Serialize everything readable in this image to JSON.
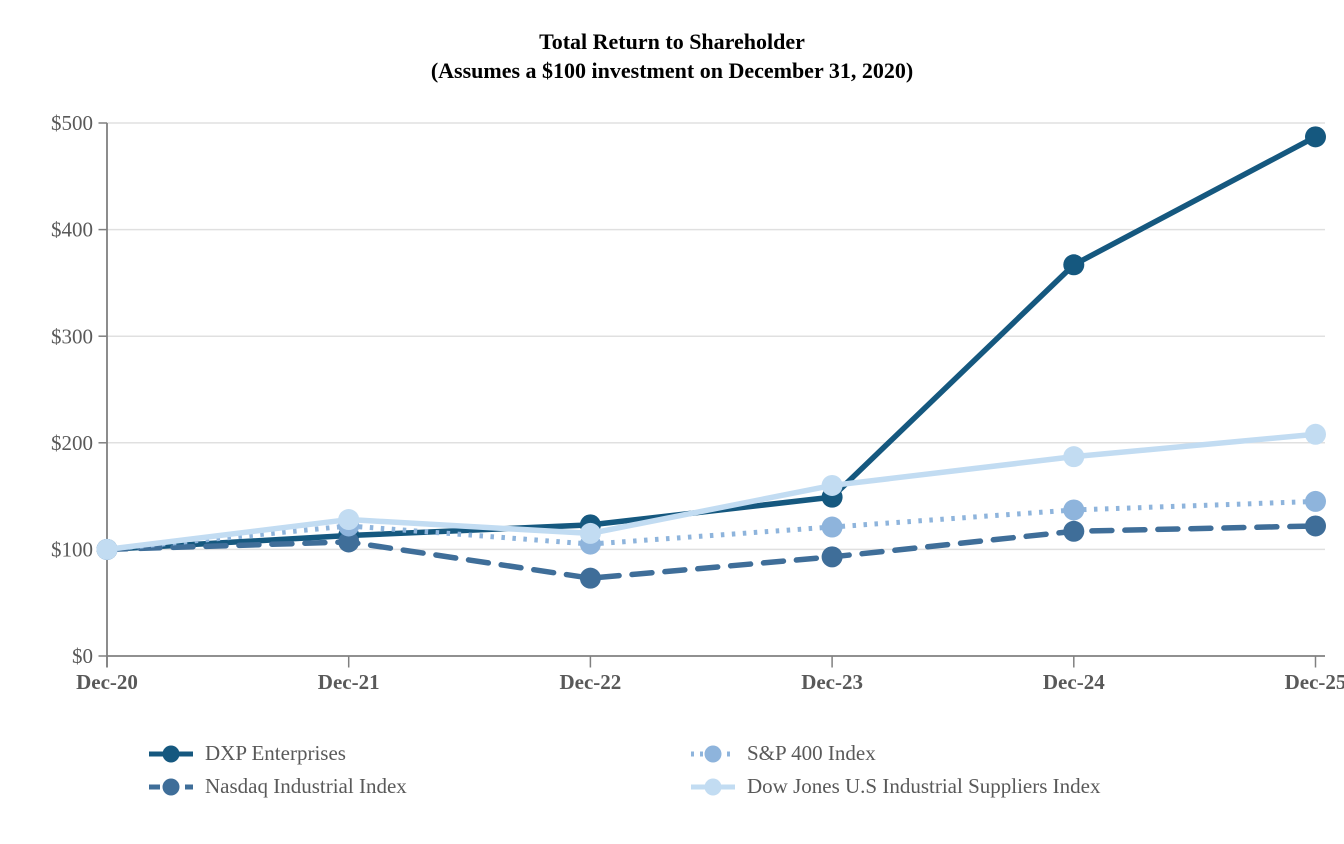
{
  "title": {
    "line1": "Total Return to Shareholder",
    "line2": "(Assumes a $100 investment on December 31, 2020)"
  },
  "chart_data": {
    "type": "line",
    "categories": [
      "Dec-20",
      "Dec-21",
      "Dec-22",
      "Dec-23",
      "Dec-24",
      "Dec-25"
    ],
    "series": [
      {
        "name": "DXP Enterprises",
        "values": [
          100,
          113,
          123,
          149,
          367,
          487
        ],
        "color": "#15587F",
        "line_style": "solid"
      },
      {
        "name": "Nasdaq Industrial Index",
        "values": [
          100,
          107,
          73,
          93,
          117,
          122
        ],
        "color": "#3F6E99",
        "line_style": "dashed"
      },
      {
        "name": "S&P 400 Index",
        "values": [
          100,
          122,
          105,
          121,
          137,
          145
        ],
        "color": "#8EB4DC",
        "line_style": "dotted"
      },
      {
        "name": "Dow Jones U.S Industrial Suppliers Index",
        "values": [
          100,
          128,
          115,
          160,
          187,
          208
        ],
        "color": "#C2DCF2",
        "line_style": "solid"
      }
    ],
    "y_ticks": [
      "$0",
      "$100",
      "$200",
      "$300",
      "$400",
      "$500"
    ],
    "ylim": [
      0,
      500
    ],
    "y_tick_interval": 100,
    "grid": true,
    "legend_position": "bottom",
    "title": "Total Return to Shareholder (Assumes a $100 investment on December 31, 2020)",
    "xlabel": "",
    "ylabel": ""
  },
  "colors": {
    "background": "#FFFFFF",
    "grid_line": "#E0E0E0",
    "axis_line": "#808080",
    "tick_label": "#595959",
    "legend_text": "#595959",
    "title_text": "#000000"
  }
}
